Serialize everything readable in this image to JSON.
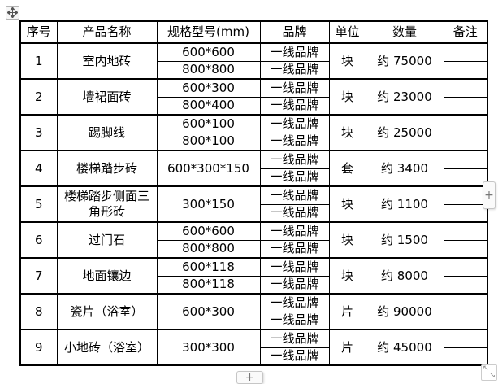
{
  "page": {
    "background": "#ffffff",
    "text_color": "#000000",
    "table_border_color": "#000000",
    "control_border_color": "#c6c6c6",
    "control_bg_color": "#fafafa",
    "control_icon_color": "#777777"
  },
  "controls": {
    "move_handle_icon": "table-move-icon",
    "insert_column_label": "+",
    "insert_row_label": "+",
    "resize_nw_glyph": "↖",
    "resize_se_glyph": "↘"
  },
  "table": {
    "headers": [
      "序号",
      "产品名称",
      "规格型号(mm)",
      "品牌",
      "单位",
      "数量",
      "备注"
    ],
    "rows": [
      {
        "no": "1",
        "name": "室内地砖",
        "specs": [
          "600*600",
          "800*800"
        ],
        "brands": [
          "一线品牌",
          "一线品牌"
        ],
        "unit": "块",
        "qty": "约 75000",
        "remarks": [
          "",
          ""
        ]
      },
      {
        "no": "2",
        "name": "墙裙面砖",
        "specs": [
          "600*300",
          "800*400"
        ],
        "brands": [
          "一线品牌",
          "一线品牌"
        ],
        "unit": "块",
        "qty": "约 23000",
        "remarks": [
          "",
          ""
        ]
      },
      {
        "no": "3",
        "name": "踢脚线",
        "specs": [
          "600*100",
          "800*100"
        ],
        "brands": [
          "一线品牌",
          "一线品牌"
        ],
        "unit": "块",
        "qty": "约 25000",
        "remarks": [
          "",
          ""
        ]
      },
      {
        "no": "4",
        "name": "楼梯踏步砖",
        "specs": [
          "600*300*150"
        ],
        "brands": [
          "一线品牌",
          "一线品牌"
        ],
        "unit": "套",
        "qty": "约 3400",
        "remarks": [
          "",
          ""
        ]
      },
      {
        "no": "5",
        "name": "楼梯踏步侧面三角形砖",
        "specs": [
          "300*150"
        ],
        "brands": [
          "一线品牌",
          "一线品牌"
        ],
        "unit": "块",
        "qty": "约 1100",
        "remarks": [
          "",
          ""
        ]
      },
      {
        "no": "6",
        "name": "过门石",
        "specs": [
          "600*600",
          "800*800"
        ],
        "brands": [
          "一线品牌",
          "一线品牌"
        ],
        "unit": "块",
        "qty": "约 1500",
        "remarks": [
          "",
          ""
        ]
      },
      {
        "no": "7",
        "name": "地面镶边",
        "specs": [
          "600*118",
          "800*118"
        ],
        "brands": [
          "一线品牌",
          "一线品牌"
        ],
        "unit": "块",
        "qty": "约 8000",
        "remarks": [
          "",
          ""
        ]
      },
      {
        "no": "8",
        "name": "瓷片（浴室）",
        "specs": [
          "600*300"
        ],
        "brands": [
          "一线品牌",
          "一线品牌"
        ],
        "unit": "片",
        "qty": "约 90000",
        "remarks": [
          "",
          ""
        ]
      },
      {
        "no": "9",
        "name": "小地砖（浴室）",
        "specs": [
          "300*300"
        ],
        "brands": [
          "一线品牌",
          "一线品牌"
        ],
        "unit": "片",
        "qty": "约 45000",
        "remarks": [
          "",
          ""
        ]
      }
    ]
  }
}
